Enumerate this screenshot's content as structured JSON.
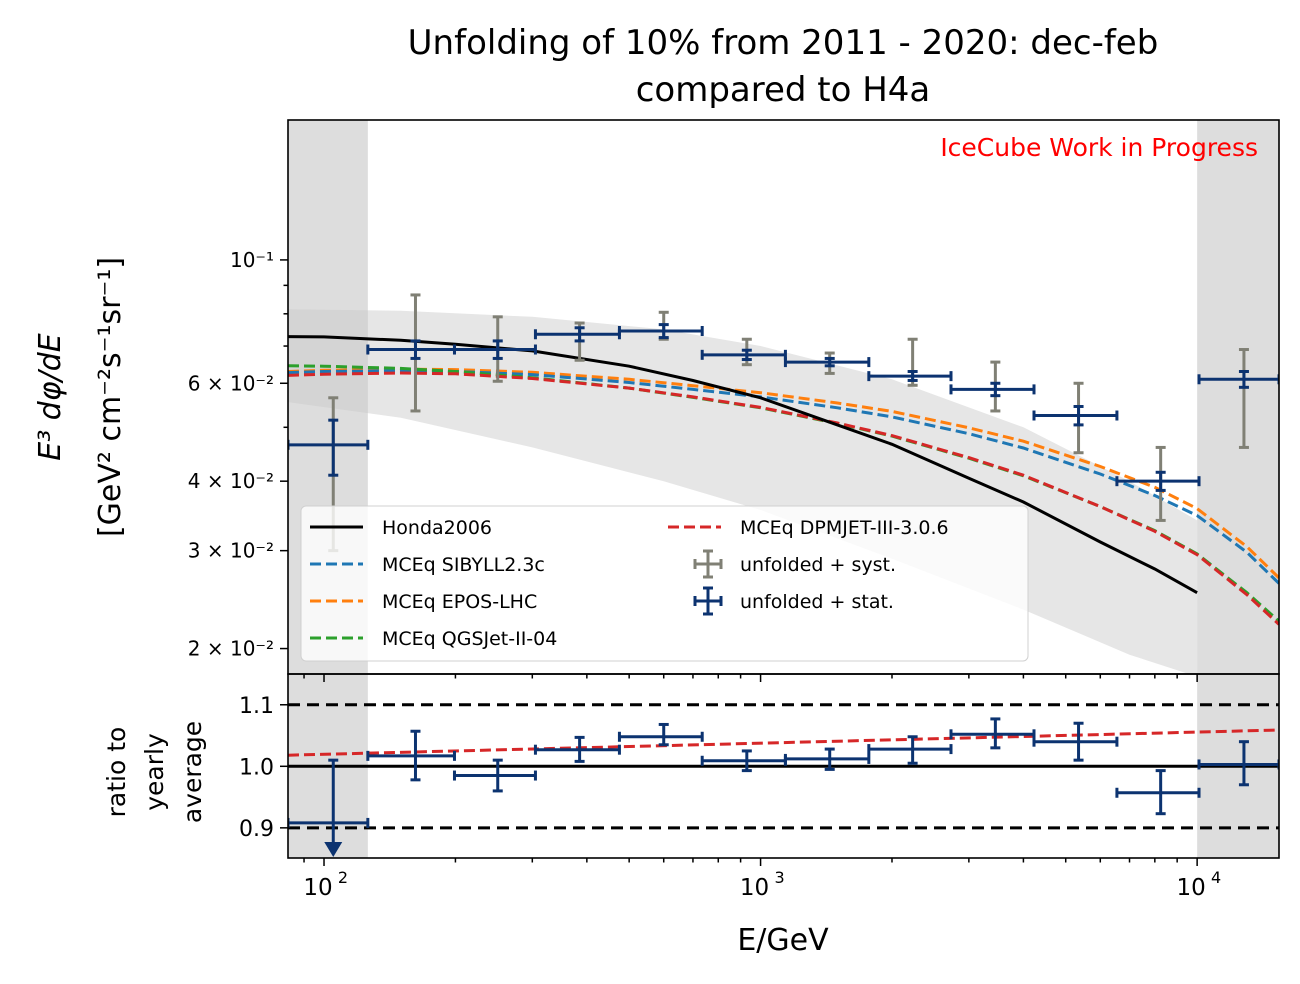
{
  "chart_data": [
    {
      "type": "line",
      "panel": "main",
      "title": "Unfolding of 10% from 2011 - 2020: dec-feb",
      "subtitle": "compared to H4a",
      "watermark": "IceCube Work in Progress",
      "xlabel": "E/GeV",
      "ylabel_line1": "E³ dφ/dE",
      "ylabel_line2": "[GeV² cm⁻²s⁻¹sr⁻¹]",
      "xscale": "log",
      "yscale": "log",
      "xlim": [
        82.7,
        15400
      ],
      "ylim": [
        0.018,
        0.1785
      ],
      "ytick_labels": [
        {
          "value": 0.1,
          "label": "10⁻¹"
        },
        {
          "value": 0.06,
          "label": "6 × 10⁻²"
        },
        {
          "value": 0.04,
          "label": "4 × 10⁻²"
        },
        {
          "value": 0.03,
          "label": "3 × 10⁻²"
        },
        {
          "value": 0.02,
          "label": "2 × 10⁻²"
        }
      ],
      "excluded_regions": [
        [
          82.7,
          126
        ],
        [
          10000,
          15400
        ]
      ],
      "legend_location": "lower-left",
      "legend": [
        {
          "label": "Honda2006",
          "style": "solid",
          "color": "#000000"
        },
        {
          "label": "MCEq SIBYLL2.3c",
          "style": "dashed",
          "color": "#1f77b4"
        },
        {
          "label": "MCEq EPOS-LHC",
          "style": "dashed",
          "color": "#ff7f0e"
        },
        {
          "label": "MCEq QGSJet-II-04",
          "style": "dashed",
          "color": "#2ca02c"
        },
        {
          "label": "MCEq DPMJET-III-3.0.6",
          "style": "dashed",
          "color": "#d62728"
        },
        {
          "label": "unfolded + syst.",
          "style": "errorbar",
          "color": "#808075"
        },
        {
          "label": "unfolded + stat.",
          "style": "errorbar",
          "color": "#0c3370"
        }
      ],
      "band": {
        "color": "#e6e6e6",
        "x": [
          82.7,
          150,
          300,
          600,
          1000,
          2000,
          4000,
          7000,
          10000
        ],
        "upper": [
          0.0815,
          0.081,
          0.079,
          0.075,
          0.07,
          0.061,
          0.05,
          0.04,
          0.034
        ],
        "lower": [
          0.0555,
          0.052,
          0.046,
          0.04,
          0.0355,
          0.029,
          0.0235,
          0.0195,
          0.0178
        ]
      },
      "series": [
        {
          "name": "Honda2006",
          "color": "#000000",
          "dashed": false,
          "x": [
            82.7,
            100,
            150,
            200,
            300,
            500,
            700,
            1000,
            1500,
            2000,
            3000,
            4000,
            6000,
            8000,
            10000
          ],
          "y": [
            0.0728,
            0.0727,
            0.0717,
            0.0705,
            0.0686,
            0.0644,
            0.0607,
            0.0565,
            0.0505,
            0.0466,
            0.0405,
            0.0367,
            0.0311,
            0.0278,
            0.0252
          ]
        },
        {
          "name": "MCEq SIBYLL2.3c",
          "color": "#1f77b4",
          "dashed": true,
          "x": [
            82.7,
            100,
            150,
            200,
            300,
            500,
            700,
            1000,
            1500,
            2000,
            3000,
            4000,
            6000,
            8000,
            10000,
            13000,
            15400
          ],
          "y": [
            0.0627,
            0.063,
            0.0632,
            0.063,
            0.0622,
            0.0602,
            0.0585,
            0.0567,
            0.0542,
            0.0522,
            0.0487,
            0.0459,
            0.0412,
            0.0377,
            0.0347,
            0.0298,
            0.0262
          ]
        },
        {
          "name": "MCEq EPOS-LHC",
          "color": "#ff7f0e",
          "dashed": true,
          "x": [
            82.7,
            100,
            150,
            200,
            300,
            500,
            700,
            1000,
            1500,
            2000,
            3000,
            4000,
            6000,
            8000,
            10000,
            13000,
            15400
          ],
          "y": [
            0.063,
            0.0633,
            0.0636,
            0.0635,
            0.0628,
            0.061,
            0.0594,
            0.0577,
            0.0553,
            0.0534,
            0.0499,
            0.0472,
            0.0425,
            0.039,
            0.0357,
            0.0305,
            0.0268
          ]
        },
        {
          "name": "MCEq QGSJet-II-04",
          "color": "#2ca02c",
          "dashed": true,
          "x": [
            82.7,
            100,
            150,
            200,
            300,
            500,
            700,
            1000,
            1500,
            2000,
            3000,
            4000,
            6000,
            8000,
            10000,
            13000,
            15400
          ],
          "y": [
            0.0645,
            0.0644,
            0.0638,
            0.063,
            0.0614,
            0.0588,
            0.0566,
            0.0542,
            0.0508,
            0.0482,
            0.044,
            0.0409,
            0.036,
            0.0326,
            0.0296,
            0.0252,
            0.0224
          ]
        },
        {
          "name": "MCEq DPMJET-III-3.0.6",
          "color": "#d62728",
          "dashed": true,
          "x": [
            82.7,
            100,
            150,
            200,
            300,
            500,
            700,
            1000,
            1500,
            2000,
            3000,
            4000,
            6000,
            8000,
            10000,
            13000,
            15400
          ],
          "y": [
            0.062,
            0.0623,
            0.0626,
            0.0624,
            0.0612,
            0.0588,
            0.0567,
            0.0543,
            0.0509,
            0.0483,
            0.0441,
            0.041,
            0.036,
            0.0325,
            0.0295,
            0.025,
            0.0221
          ]
        }
      ],
      "unfolded": {
        "x": [
          105,
          162,
          250,
          385,
          600,
          930,
          1440,
          2230,
          3450,
          5350,
          8250,
          12800
        ],
        "x_low": [
          82.7,
          126,
          199,
          305,
          475,
          735,
          1140,
          1770,
          2730,
          4230,
          6550,
          10100
        ],
        "x_high": [
          126,
          199,
          305,
          475,
          735,
          1140,
          1770,
          2730,
          4230,
          6550,
          10100,
          15400
        ],
        "y": [
          0.0465,
          0.069,
          0.069,
          0.0735,
          0.0745,
          0.0675,
          0.0655,
          0.0618,
          0.0585,
          0.0525,
          0.04,
          0.061
        ],
        "stat_low": [
          0.041,
          0.0665,
          0.0665,
          0.0715,
          0.0725,
          0.0662,
          0.0645,
          0.0607,
          0.057,
          0.0505,
          0.0385,
          0.059
        ],
        "stat_high": [
          0.0515,
          0.0715,
          0.0715,
          0.0755,
          0.0765,
          0.0688,
          0.0665,
          0.063,
          0.06,
          0.0545,
          0.0415,
          0.063
        ],
        "syst_low": [
          0.03,
          0.0535,
          0.0605,
          0.066,
          0.072,
          0.0648,
          0.0625,
          0.0595,
          0.0535,
          0.045,
          0.034,
          0.046
        ],
        "syst_high": [
          0.0565,
          0.0865,
          0.079,
          0.077,
          0.0805,
          0.072,
          0.068,
          0.072,
          0.0655,
          0.06,
          0.046,
          0.069
        ]
      }
    },
    {
      "type": "line",
      "panel": "ratio",
      "xlabel": "E/GeV",
      "ylabel_lines": [
        "ratio to",
        "yearly",
        "average"
      ],
      "xscale": "log",
      "yscale": "linear",
      "xlim": [
        82.7,
        15400
      ],
      "ylim": [
        0.851,
        1.15
      ],
      "xtick_labels": [
        {
          "value": 100,
          "label": "10",
          "exp": "2"
        },
        {
          "value": 1000,
          "label": "10",
          "exp": "3"
        },
        {
          "value": 10000,
          "label": "10",
          "exp": "4"
        }
      ],
      "ytick_labels": [
        {
          "value": 1.1,
          "label": "1.1"
        },
        {
          "value": 1.0,
          "label": "1.0"
        },
        {
          "value": 0.9,
          "label": "0.9"
        }
      ],
      "reference_lines": [
        {
          "y": 1.1,
          "style": "dashed",
          "color": "#000000"
        },
        {
          "y": 1.0,
          "style": "solid",
          "color": "#000000"
        },
        {
          "y": 0.9,
          "style": "dashed",
          "color": "#000000"
        }
      ],
      "model_ratio": {
        "name": "MCEq DPMJET-III-3.0.6",
        "color": "#d62728",
        "x": [
          82.7,
          15400
        ],
        "y": [
          1.018,
          1.059
        ]
      },
      "points": {
        "x": [
          105,
          162,
          250,
          385,
          600,
          930,
          1440,
          2230,
          3450,
          5350,
          8250,
          12800
        ],
        "x_low": [
          82.7,
          126,
          199,
          305,
          475,
          735,
          1140,
          1770,
          2730,
          4230,
          6550,
          10100
        ],
        "x_high": [
          126,
          199,
          305,
          475,
          735,
          1140,
          1770,
          2730,
          4230,
          6550,
          10100,
          15400
        ],
        "y": [
          0.908,
          1.017,
          0.985,
          1.027,
          1.048,
          1.009,
          1.012,
          1.028,
          1.052,
          1.04,
          0.957,
          1.003
        ],
        "err_low": [
          0.908,
          0.978,
          0.96,
          1.008,
          1.035,
          0.993,
          0.995,
          1.005,
          1.03,
          1.01,
          0.923,
          0.97
        ],
        "err_high": [
          1.01,
          1.057,
          1.01,
          1.047,
          1.068,
          1.025,
          1.028,
          1.048,
          1.077,
          1.07,
          0.993,
          1.04
        ],
        "upper_limit_arrow_index": 0
      }
    }
  ]
}
